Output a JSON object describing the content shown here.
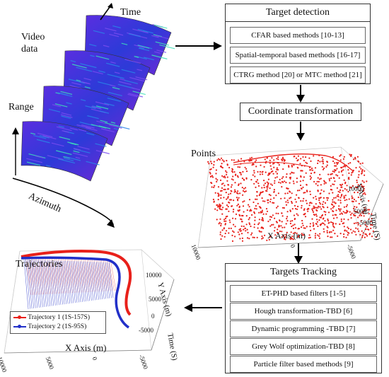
{
  "video": {
    "label_line1": "Video",
    "label_line2": "data",
    "time_label": "Time",
    "range_label": "Range",
    "azimuth_label": "Azimuth"
  },
  "detection": {
    "title": "Target detection",
    "items": [
      "CFAR based methods [10-13]",
      "Spatial-temporal based methods [16-17]",
      "CTRG method [20] or MTC method [21]"
    ]
  },
  "transform": {
    "title": "Coordinate transformation"
  },
  "points": {
    "label": "Points",
    "x_axis": "X Axis (m)",
    "y_axis": "Y Axis (m)",
    "time_axis": "Time (S)",
    "x_ticks": [
      "10000",
      "0",
      "-5000"
    ],
    "y_ticks": [
      "10000",
      "5000",
      "-5000"
    ]
  },
  "tracking": {
    "title": "Targets Tracking",
    "items": [
      "ET-PHD based filters [1-5]",
      "Hough transformation-TBD  [6]",
      "Dynamic programming -TBD  [7]",
      "Grey Wolf optimization-TBD  [8]",
      "Particle filter based methods   [9]"
    ]
  },
  "trajectories": {
    "label": "Trajectories",
    "legend": [
      {
        "name": "Trajectory 1 (1S-157S)",
        "color": "#e8201a"
      },
      {
        "name": "Trajectory 2 (1S-95S)",
        "color": "#2230c8"
      }
    ],
    "x_axis": "X Axis (m)",
    "y_axis": "Y Axis (m)",
    "time_axis": "Time (S)",
    "x_ticks": [
      "10000",
      "5000",
      "0",
      "-5000"
    ],
    "y_ticks": [
      "10000",
      "5000",
      "0",
      "-5000"
    ]
  },
  "colors": {
    "point_red": "#e8201a",
    "traj_blue": "#2230c8",
    "sonar_bg": "#3a2ad0",
    "sonar_streak": "#3ee0b8"
  }
}
